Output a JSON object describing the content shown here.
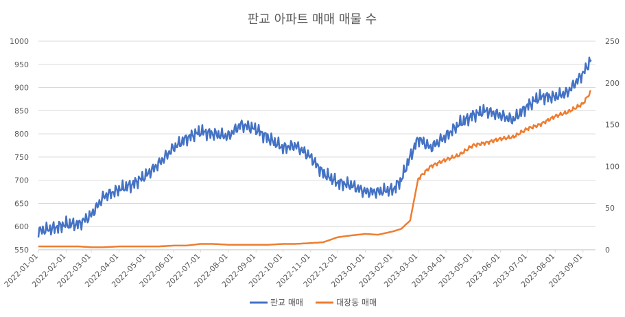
{
  "chart_data": {
    "type": "line",
    "title": "판교 아파트 매매 매물 수",
    "x_tick_labels": [
      "2022-01-01",
      "2022-02-01",
      "2022-03-01",
      "2022-04-01",
      "2022-05-01",
      "2022-06-01",
      "2022-07-01",
      "2022-08-01",
      "2022-09-01",
      "2022-10-01",
      "2022-11-01",
      "2022-12-01",
      "2023-01-01",
      "2023-02-01",
      "2023-03-01",
      "2023-04-01",
      "2023-05-01",
      "2023-06-01",
      "2023-07-01",
      "2023-08-01",
      "2023-09-01"
    ],
    "y_left": {
      "min": 550,
      "max": 1000,
      "ticks": [
        550,
        600,
        650,
        700,
        750,
        800,
        850,
        900,
        950,
        1000
      ]
    },
    "y_right": {
      "min": 0,
      "max": 250,
      "ticks": [
        0,
        50,
        100,
        150,
        200,
        250
      ]
    },
    "grid": true,
    "legend_position": "bottom",
    "series": [
      {
        "name": "판교 매매",
        "axis": "left",
        "color": "#4472c4",
        "x": [
          "2022-01-01",
          "2022-01-15",
          "2022-02-01",
          "2022-02-15",
          "2022-03-01",
          "2022-03-15",
          "2022-04-01",
          "2022-04-15",
          "2022-05-01",
          "2022-05-15",
          "2022-06-01",
          "2022-06-15",
          "2022-07-01",
          "2022-07-15",
          "2022-08-01",
          "2022-08-15",
          "2022-09-01",
          "2022-09-15",
          "2022-10-01",
          "2022-10-15",
          "2022-11-01",
          "2022-11-15",
          "2022-12-01",
          "2022-12-15",
          "2023-01-01",
          "2023-01-15",
          "2023-02-01",
          "2023-02-10",
          "2023-02-20",
          "2023-03-01",
          "2023-03-15",
          "2023-04-01",
          "2023-04-15",
          "2023-05-01",
          "2023-05-15",
          "2023-06-01",
          "2023-06-15",
          "2023-07-01",
          "2023-07-15",
          "2023-08-01",
          "2023-08-15",
          "2023-09-01",
          "2023-09-10"
        ],
        "y": [
          590,
          595,
          605,
          605,
          625,
          665,
          680,
          690,
          710,
          735,
          770,
          790,
          805,
          800,
          795,
          820,
          810,
          790,
          770,
          775,
          750,
          715,
          695,
          690,
          675,
          675,
          680,
          700,
          750,
          790,
          770,
          795,
          820,
          840,
          850,
          840,
          830,
          860,
          880,
          880,
          890,
          930,
          960
        ]
      },
      {
        "name": "대장동 매매",
        "axis": "right",
        "color": "#ed7d31",
        "x": [
          "2022-01-01",
          "2022-01-15",
          "2022-02-01",
          "2022-02-15",
          "2022-03-01",
          "2022-03-15",
          "2022-04-01",
          "2022-04-15",
          "2022-05-01",
          "2022-05-15",
          "2022-06-01",
          "2022-06-15",
          "2022-07-01",
          "2022-07-15",
          "2022-08-01",
          "2022-08-15",
          "2022-09-01",
          "2022-09-15",
          "2022-10-01",
          "2022-10-15",
          "2022-11-01",
          "2022-11-15",
          "2022-12-01",
          "2022-12-15",
          "2023-01-01",
          "2023-01-15",
          "2023-02-01",
          "2023-02-10",
          "2023-02-20",
          "2023-03-01",
          "2023-03-15",
          "2023-04-01",
          "2023-04-15",
          "2023-05-01",
          "2023-05-15",
          "2023-06-01",
          "2023-06-15",
          "2023-07-01",
          "2023-07-15",
          "2023-08-01",
          "2023-08-15",
          "2023-09-01",
          "2023-09-10"
        ],
        "y": [
          4,
          4,
          4,
          4,
          3,
          3,
          4,
          4,
          4,
          4,
          5,
          5,
          7,
          7,
          6,
          6,
          6,
          6,
          7,
          7,
          8,
          9,
          15,
          17,
          19,
          18,
          22,
          25,
          35,
          85,
          100,
          108,
          113,
          125,
          128,
          133,
          135,
          145,
          150,
          160,
          165,
          175,
          190
        ]
      }
    ]
  }
}
